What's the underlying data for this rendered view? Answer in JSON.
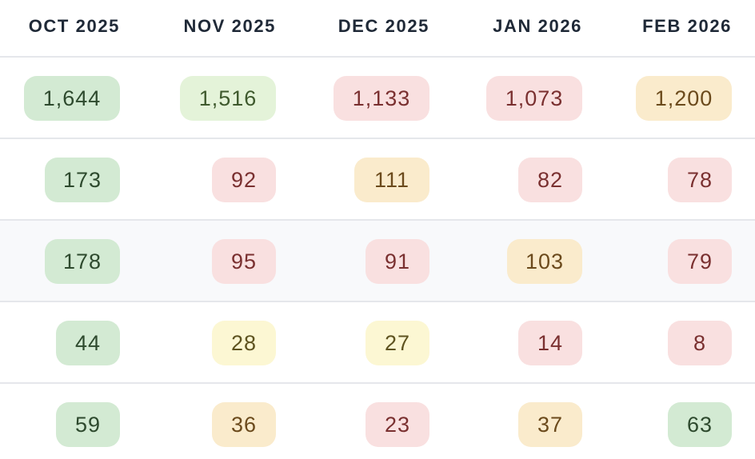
{
  "columns": [
    "OCT 2025",
    "NOV 2025",
    "DEC 2025",
    "JAN 2026",
    "FEB 2026"
  ],
  "rows": [
    {
      "cells": [
        {
          "value": "1,644",
          "color": "green"
        },
        {
          "value": "1,516",
          "color": "lightgreen"
        },
        {
          "value": "1,133",
          "color": "red"
        },
        {
          "value": "1,073",
          "color": "red"
        },
        {
          "value": "1,200",
          "color": "orange"
        }
      ]
    },
    {
      "cells": [
        {
          "value": "173",
          "color": "green"
        },
        {
          "value": "92",
          "color": "red"
        },
        {
          "value": "111",
          "color": "orange"
        },
        {
          "value": "82",
          "color": "red"
        },
        {
          "value": "78",
          "color": "red"
        }
      ]
    },
    {
      "highlighted": true,
      "cells": [
        {
          "value": "178",
          "color": "green"
        },
        {
          "value": "95",
          "color": "red"
        },
        {
          "value": "91",
          "color": "red"
        },
        {
          "value": "103",
          "color": "orange"
        },
        {
          "value": "79",
          "color": "red"
        }
      ]
    },
    {
      "cells": [
        {
          "value": "44",
          "color": "green"
        },
        {
          "value": "28",
          "color": "yellow"
        },
        {
          "value": "27",
          "color": "yellow"
        },
        {
          "value": "14",
          "color": "red"
        },
        {
          "value": "8",
          "color": "red"
        }
      ]
    },
    {
      "cells": [
        {
          "value": "59",
          "color": "green"
        },
        {
          "value": "36",
          "color": "orange"
        },
        {
          "value": "23",
          "color": "red"
        },
        {
          "value": "37",
          "color": "orange"
        },
        {
          "value": "63",
          "color": "green"
        }
      ]
    }
  ],
  "colors": {
    "green": "#d3ead3",
    "lightgreen": "#e4f3d9",
    "red": "#f9e0e0",
    "orange": "#faebcc",
    "yellow": "#fcf7d3",
    "row_highlight": "#f8f9fb",
    "divider": "#e5e7eb"
  }
}
